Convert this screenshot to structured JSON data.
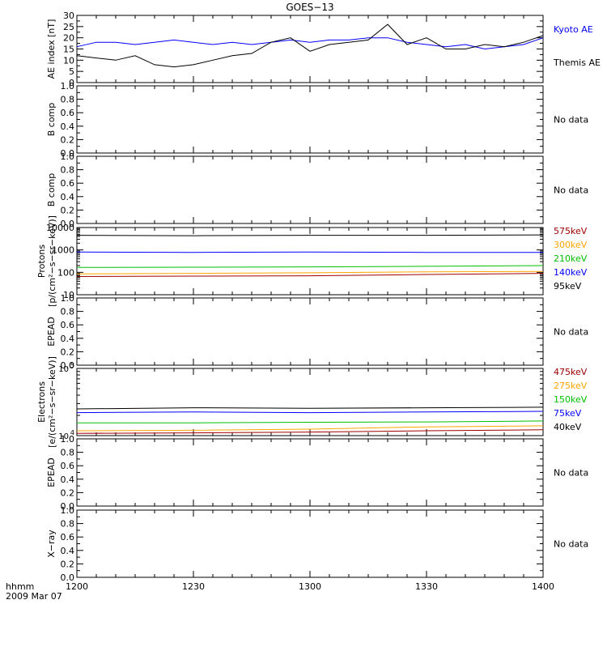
{
  "title": "GOES−13",
  "footer": {
    "xlabel": "hhmm",
    "date": "2009 Mar 07",
    "xticks": [
      "1200",
      "1230",
      "1300",
      "1330",
      "1400"
    ]
  },
  "chart_data": [
    {
      "type": "line",
      "panel": "ae",
      "ylabel": "AE index [nT]",
      "ylim": [
        0,
        30
      ],
      "yticks": [
        "0",
        "5",
        "10",
        "15",
        "20",
        "25",
        "30"
      ],
      "x_minutes": [
        0,
        5,
        10,
        15,
        20,
        25,
        30,
        35,
        40,
        45,
        50,
        55,
        60,
        65,
        70,
        75,
        80,
        85,
        90,
        95,
        100,
        105,
        110,
        115,
        120
      ],
      "series": [
        {
          "name": "Kyoto AE",
          "color": "#0000ff",
          "values": [
            16,
            18,
            18,
            17,
            18,
            19,
            18,
            17,
            18,
            17,
            18,
            19,
            18,
            19,
            19,
            20,
            20,
            18,
            17,
            16,
            17,
            15,
            16,
            17,
            20
          ]
        },
        {
          "name": "Themis AE",
          "color": "#000000",
          "values": [
            12,
            11,
            10,
            12,
            8,
            7,
            8,
            10,
            12,
            13,
            18,
            20,
            14,
            17,
            18,
            19,
            26,
            17,
            20,
            15,
            15,
            17,
            16,
            18,
            21
          ]
        }
      ]
    },
    {
      "type": "line",
      "panel": "empty",
      "ylabel": "B comp",
      "ylim": [
        0,
        1
      ],
      "yticks": [
        "0.0",
        "0.2",
        "0.4",
        "0.6",
        "0.8",
        "1.0"
      ],
      "note": "No data"
    },
    {
      "type": "line",
      "panel": "empty",
      "ylabel": "B comp",
      "ylim": [
        0,
        1
      ],
      "yticks": [
        "0.0",
        "0.2",
        "0.4",
        "0.6",
        "0.8",
        "1.0"
      ],
      "note": "No data"
    },
    {
      "type": "line",
      "panel": "protons",
      "ylabel": "Protons",
      "yunit": "[p/(cm²−s−sr−keV)]",
      "yscale": "log",
      "ylim": [
        10,
        10000
      ],
      "yticks": [
        "10",
        "100",
        "1000",
        "10000"
      ],
      "series": [
        {
          "name": "575keV",
          "color": "#a00000",
          "values": [
            65,
            68,
            70,
            80,
            90
          ]
        },
        {
          "name": "300keV",
          "color": "#ffa500",
          "values": [
            85,
            90,
            95,
            105,
            110
          ]
        },
        {
          "name": "210keV",
          "color": "#00c000",
          "values": [
            165,
            170,
            175,
            185,
            200
          ]
        },
        {
          "name": "140keV",
          "color": "#0000ff",
          "values": [
            800,
            780,
            800,
            780,
            780
          ]
        },
        {
          "name": "95keV",
          "color": "#000000",
          "values": [
            4500,
            4300,
            4500,
            4500,
            4700
          ]
        }
      ]
    },
    {
      "type": "line",
      "panel": "empty",
      "ylabel": "EPEAD",
      "ylim": [
        0,
        1
      ],
      "yticks": [
        "0.0",
        "0.2",
        "0.4",
        "0.6",
        "0.8",
        "1.0"
      ],
      "note": "No data"
    },
    {
      "type": "line",
      "panel": "electrons",
      "ylabel": "Electrons",
      "yunit": "[e/(cm²−s−sr−keV)]",
      "yscale": "log",
      "ylim": [
        10000,
        100000
      ],
      "ytick_bases": [
        "10",
        "10"
      ],
      "ytick_exps": [
        "4",
        "5"
      ],
      "series": [
        {
          "name": "475keV",
          "color": "#a00000",
          "values": [
            10800,
            11000,
            11300,
            11800,
            12200
          ]
        },
        {
          "name": "275keV",
          "color": "#ffa500",
          "values": [
            11800,
            12000,
            12500,
            13500,
            14000
          ]
        },
        {
          "name": "150keV",
          "color": "#00c000",
          "values": [
            15500,
            15500,
            15800,
            16000,
            16500
          ]
        },
        {
          "name": "75keV",
          "color": "#0000ff",
          "values": [
            22000,
            22500,
            22000,
            22500,
            23000
          ]
        },
        {
          "name": "40keV",
          "color": "#000000",
          "values": [
            25000,
            26000,
            25500,
            26000,
            26500
          ]
        }
      ]
    },
    {
      "type": "line",
      "panel": "empty",
      "ylabel": "EPEAD",
      "ylim": [
        0,
        1
      ],
      "yticks": [
        "0.0",
        "0.2",
        "0.4",
        "0.6",
        "0.8",
        "1.0"
      ],
      "note": "No data"
    },
    {
      "type": "line",
      "panel": "empty",
      "ylabel": "X−ray",
      "ylim": [
        0,
        1
      ],
      "yticks": [
        "0.0",
        "0.2",
        "0.4",
        "0.6",
        "0.8",
        "1.0"
      ],
      "note": "No data"
    }
  ]
}
